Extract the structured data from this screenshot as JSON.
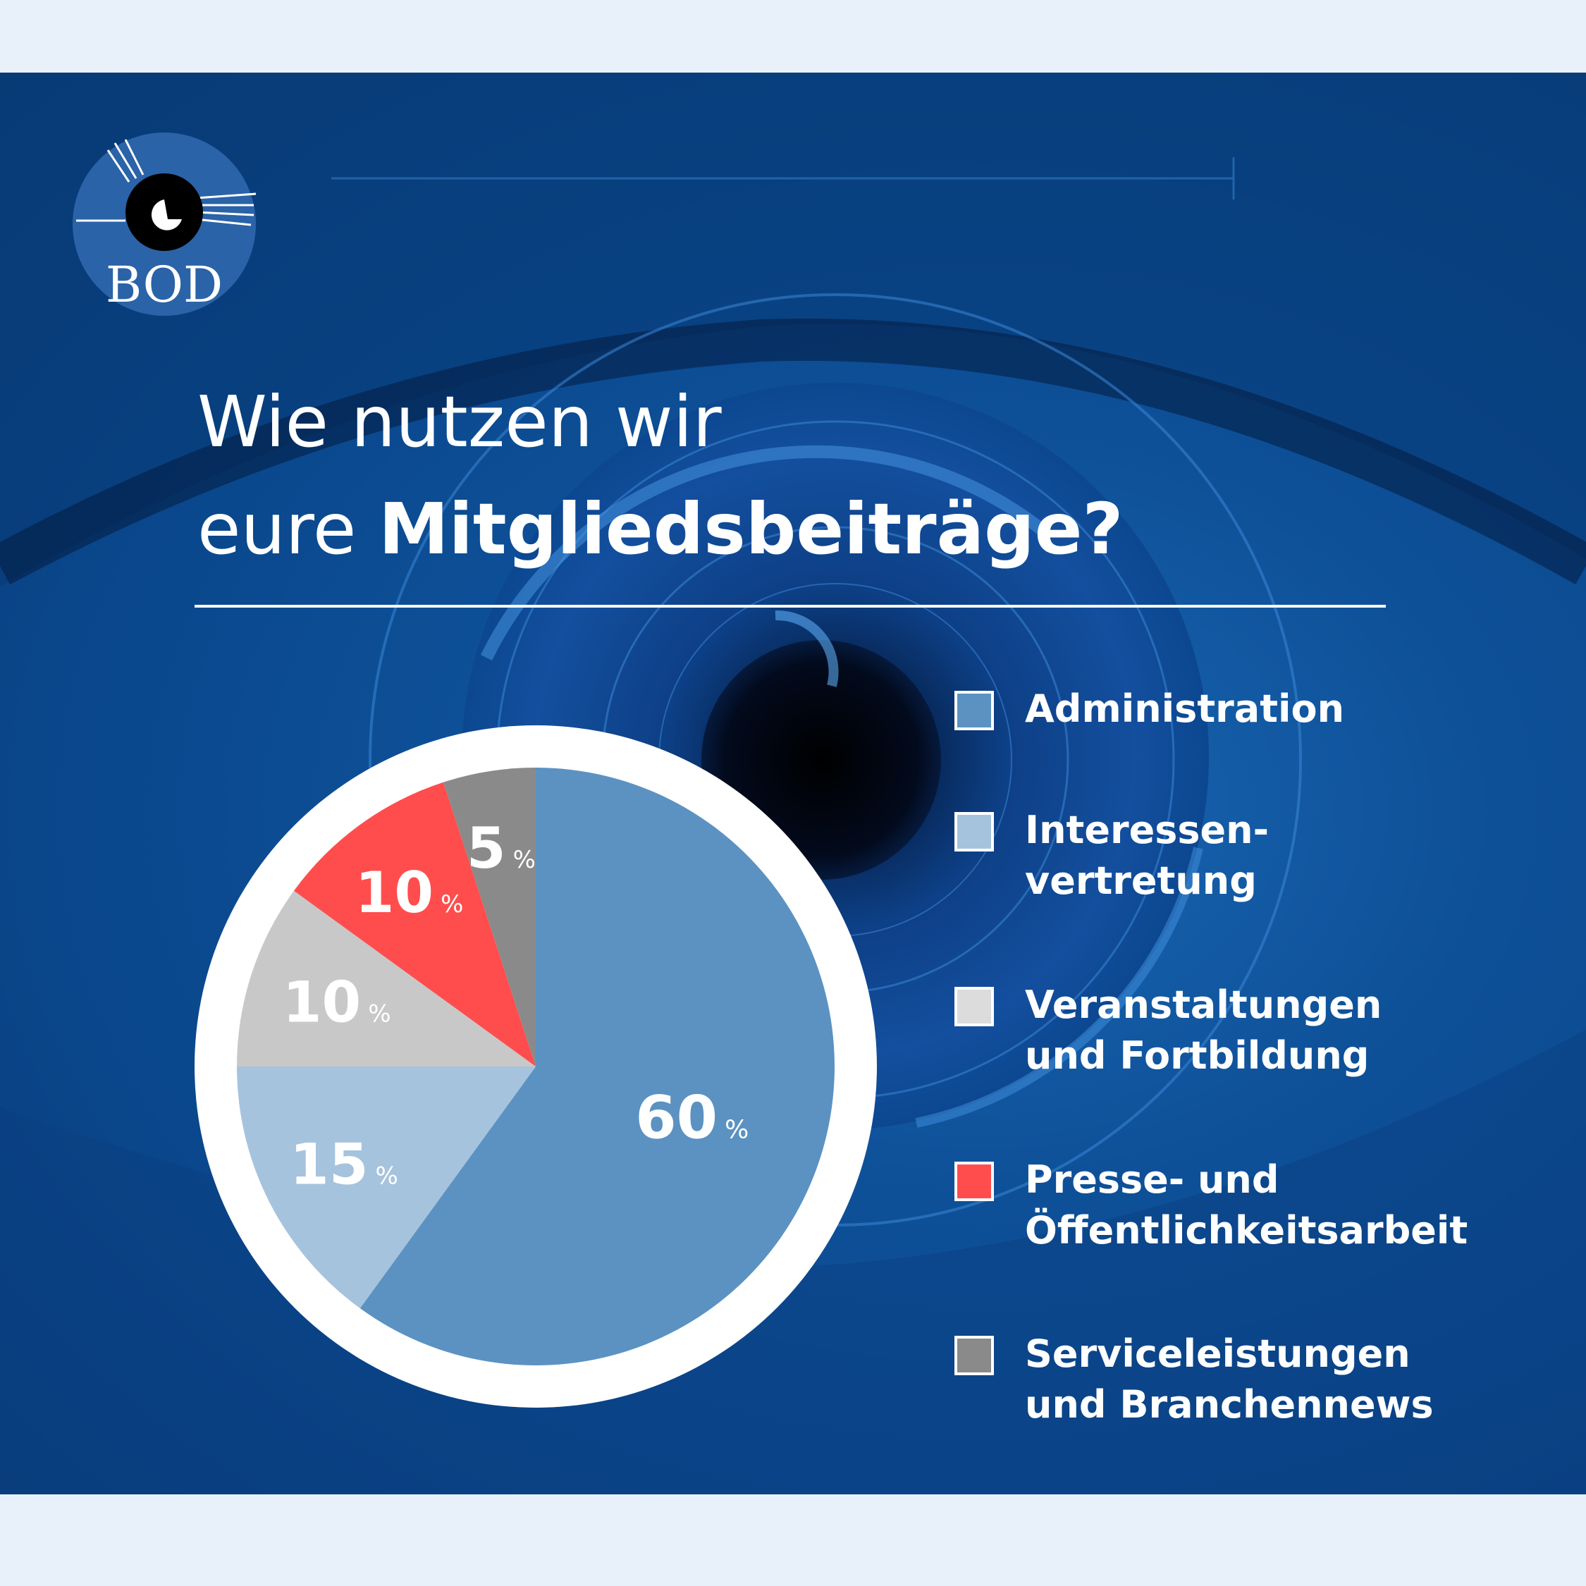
{
  "brand": {
    "logo_text": "BOD"
  },
  "title": {
    "line1": "Wie nutzen wir",
    "line2_regular": "eure ",
    "line2_bold": "Mitgliedsbeiträge?"
  },
  "colors": {
    "background": "#0a478c",
    "administration": "#5b92c2",
    "interessenvertretung": "#a6c3de",
    "veranstaltungen": "#c8c8c8",
    "presse": "#ff4d4d",
    "service": "#8a8a8a",
    "ring": "#ffffff"
  },
  "chart_data": {
    "type": "pie",
    "categories": [
      "Administration",
      "Interessen-vertretung",
      "Veranstaltungen und Fortbildung",
      "Presse- und Öffentlichkeitsarbeit",
      "Serviceleistungen und Branchennews"
    ],
    "values": [
      60,
      15,
      10,
      10,
      5
    ],
    "value_labels": [
      "60",
      "15",
      "10",
      "10",
      "5"
    ],
    "unit": "%",
    "colors": [
      "#5b92c2",
      "#a6c3de",
      "#c8c8c8",
      "#ff4d4d",
      "#8a8a8a"
    ],
    "start": "12 o'clock, clockwise",
    "legend_position": "right"
  },
  "legend": [
    {
      "lines": [
        "Administration"
      ],
      "color": "#5b92c2"
    },
    {
      "lines": [
        "Interessen-",
        "vertretung"
      ],
      "color": "#a6c3de"
    },
    {
      "lines": [
        "Veranstaltungen",
        "und Fortbildung"
      ],
      "color": "#dcdcdc"
    },
    {
      "lines": [
        "Presse- und",
        "Öffentlichkeitsarbeit"
      ],
      "color": "#ff4d4d"
    },
    {
      "lines": [
        "Serviceleistungen",
        "und Branchennews"
      ],
      "color": "#8a8a8a"
    }
  ]
}
